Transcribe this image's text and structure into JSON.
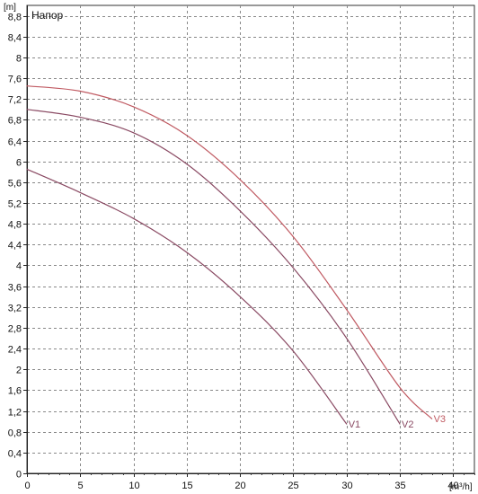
{
  "chart_data": {
    "type": "line",
    "title": "Напор",
    "ylabel": "[m]",
    "xlabel": "[m³/h]",
    "xlim": [
      0,
      42
    ],
    "ylim": [
      0,
      9
    ],
    "x_ticks": [
      0,
      5,
      10,
      15,
      20,
      25,
      30,
      35,
      40
    ],
    "y_ticks": [
      0,
      0.4,
      0.8,
      1.2,
      1.6,
      2,
      2.4,
      2.8,
      3.2,
      3.6,
      4,
      4.4,
      4.8,
      5.2,
      5.6,
      6,
      6.4,
      6.8,
      7.2,
      7.6,
      8,
      8.4,
      8.8
    ],
    "x_tick_labels": [
      "0",
      "5",
      "10",
      "15",
      "20",
      "25",
      "30",
      "35",
      "40"
    ],
    "y_tick_labels": [
      "0",
      "0,4",
      "0,8",
      "1,2",
      "1,6",
      "2",
      "2,4",
      "2,8",
      "3,2",
      "3,6",
      "4",
      "4,4",
      "4,8",
      "5,2",
      "5,6",
      "6",
      "6,4",
      "6,8",
      "7,2",
      "7,6",
      "8",
      "8,4",
      "8,8"
    ],
    "grid": true,
    "series": [
      {
        "name": "V1",
        "color": "#8a4a63",
        "x": [
          0,
          5,
          10,
          15,
          20,
          25,
          30
        ],
        "y": [
          5.85,
          5.4,
          4.9,
          4.25,
          3.4,
          2.35,
          0.95
        ]
      },
      {
        "name": "V2",
        "color": "#8a4a63",
        "x": [
          0,
          5,
          10,
          15,
          20,
          25,
          30,
          35
        ],
        "y": [
          7.0,
          6.85,
          6.55,
          5.95,
          5.05,
          3.95,
          2.6,
          0.95
        ]
      },
      {
        "name": "V3",
        "color": "#c05a62",
        "x": [
          0,
          5,
          10,
          15,
          20,
          25,
          30,
          35,
          38
        ],
        "y": [
          7.45,
          7.35,
          7.05,
          6.5,
          5.65,
          4.55,
          3.15,
          1.65,
          1.05
        ]
      }
    ]
  }
}
